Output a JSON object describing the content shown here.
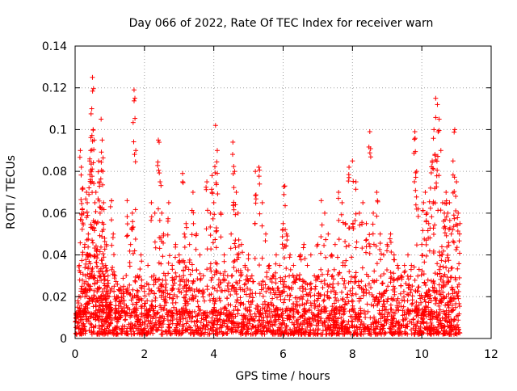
{
  "chart_data": {
    "type": "scatter",
    "title": "Day 066 of 2022, Rate Of TEC Index for receiver warn",
    "xlabel": "GPS time / hours",
    "ylabel": "ROTI / TECUs",
    "xlim": [
      0,
      12
    ],
    "ylim": [
      0,
      0.14
    ],
    "x_ticks": [
      0,
      2,
      4,
      6,
      8,
      10,
      12
    ],
    "x_tick_labels": [
      "0",
      "2",
      "4",
      "6",
      "8",
      "10",
      "12"
    ],
    "y_ticks": [
      0,
      0.02,
      0.04,
      0.06,
      0.08,
      0.1,
      0.12,
      0.14
    ],
    "y_tick_labels": [
      "0",
      "0.02",
      "0.04",
      "0.06",
      "0.08",
      "0.1",
      "0.12",
      "0.14"
    ],
    "grid": true,
    "marker": "plus",
    "marker_color": "#ff0000",
    "series": [
      {
        "name": "ROTI",
        "x": [
          0.03,
          0.08,
          0.12,
          0.15,
          0.18,
          0.2,
          0.22,
          0.25,
          0.28,
          0.3,
          0.33,
          0.35,
          0.38,
          0.4,
          0.42,
          0.45,
          0.48,
          0.5,
          0.52,
          0.55,
          0.57,
          0.6,
          0.62,
          0.65,
          0.68,
          0.7,
          0.72,
          0.75,
          0.78,
          0.8,
          0.82,
          0.85,
          0.88,
          0.9,
          0.92,
          0.95,
          0.98,
          1.0,
          1.05,
          1.1,
          1.15,
          1.2,
          1.3,
          1.4,
          1.5,
          1.6,
          1.65,
          1.7,
          1.75,
          1.8,
          1.9,
          2.0,
          2.1,
          2.2,
          2.3,
          2.4,
          2.45,
          2.5,
          2.55,
          2.6,
          2.7,
          2.8,
          2.9,
          3.0,
          3.1,
          3.15,
          3.2,
          3.3,
          3.4,
          3.5,
          3.6,
          3.7,
          3.8,
          3.9,
          3.95,
          4.0,
          4.05,
          4.1,
          4.2,
          4.3,
          4.4,
          4.5,
          4.55,
          4.6,
          4.65,
          4.7,
          4.8,
          4.9,
          5.0,
          5.1,
          5.2,
          5.3,
          5.4,
          5.5,
          5.6,
          5.7,
          5.8,
          5.9,
          6.0,
          6.05,
          6.1,
          6.2,
          6.3,
          6.4,
          6.5,
          6.6,
          6.7,
          6.8,
          6.9,
          7.0,
          7.1,
          7.2,
          7.3,
          7.4,
          7.5,
          7.6,
          7.7,
          7.8,
          7.9,
          8.0,
          8.1,
          8.2,
          8.3,
          8.4,
          8.5,
          8.6,
          8.7,
          8.8,
          8.9,
          9.0,
          9.1,
          9.2,
          9.3,
          9.4,
          9.5,
          9.6,
          9.7,
          9.8,
          9.85,
          9.9,
          10.0,
          10.05,
          10.1,
          10.15,
          10.2,
          10.25,
          10.3,
          10.35,
          10.4,
          10.45,
          10.5,
          10.55,
          10.6,
          10.65,
          10.7,
          10.75,
          10.8,
          10.85,
          10.9,
          10.95,
          11.0,
          11.05,
          11.1
        ],
        "y": [
          0.012,
          0.018,
          0.035,
          0.09,
          0.082,
          0.025,
          0.072,
          0.06,
          0.045,
          0.03,
          0.07,
          0.065,
          0.05,
          0.04,
          0.085,
          0.09,
          0.11,
          0.125,
          0.1,
          0.095,
          0.065,
          0.07,
          0.055,
          0.04,
          0.085,
          0.075,
          0.06,
          0.105,
          0.095,
          0.08,
          0.065,
          0.048,
          0.035,
          0.045,
          0.025,
          0.03,
          0.02,
          0.015,
          0.066,
          0.05,
          0.03,
          0.02,
          0.018,
          0.025,
          0.066,
          0.045,
          0.06,
          0.119,
          0.09,
          0.03,
          0.04,
          0.025,
          0.035,
          0.065,
          0.06,
          0.095,
          0.075,
          0.06,
          0.05,
          0.03,
          0.065,
          0.035,
          0.045,
          0.04,
          0.079,
          0.05,
          0.055,
          0.045,
          0.07,
          0.05,
          0.04,
          0.03,
          0.075,
          0.06,
          0.078,
          0.065,
          0.102,
          0.09,
          0.06,
          0.04,
          0.03,
          0.05,
          0.094,
          0.08,
          0.07,
          0.06,
          0.045,
          0.035,
          0.04,
          0.03,
          0.08,
          0.082,
          0.065,
          0.05,
          0.035,
          0.03,
          0.04,
          0.035,
          0.055,
          0.073,
          0.05,
          0.04,
          0.035,
          0.03,
          0.04,
          0.045,
          0.035,
          0.04,
          0.03,
          0.045,
          0.066,
          0.06,
          0.05,
          0.04,
          0.045,
          0.07,
          0.065,
          0.055,
          0.082,
          0.085,
          0.075,
          0.06,
          0.065,
          0.055,
          0.099,
          0.06,
          0.07,
          0.05,
          0.04,
          0.045,
          0.05,
          0.04,
          0.035,
          0.03,
          0.035,
          0.04,
          0.035,
          0.099,
          0.08,
          0.062,
          0.045,
          0.065,
          0.07,
          0.06,
          0.055,
          0.072,
          0.085,
          0.1,
          0.115,
          0.112,
          0.105,
          0.09,
          0.065,
          0.06,
          0.07,
          0.06,
          0.065,
          0.05,
          0.085,
          0.1,
          0.075,
          0.06,
          0.055
        ]
      }
    ],
    "baseline_noise_range": [
      0.002,
      0.03
    ]
  }
}
